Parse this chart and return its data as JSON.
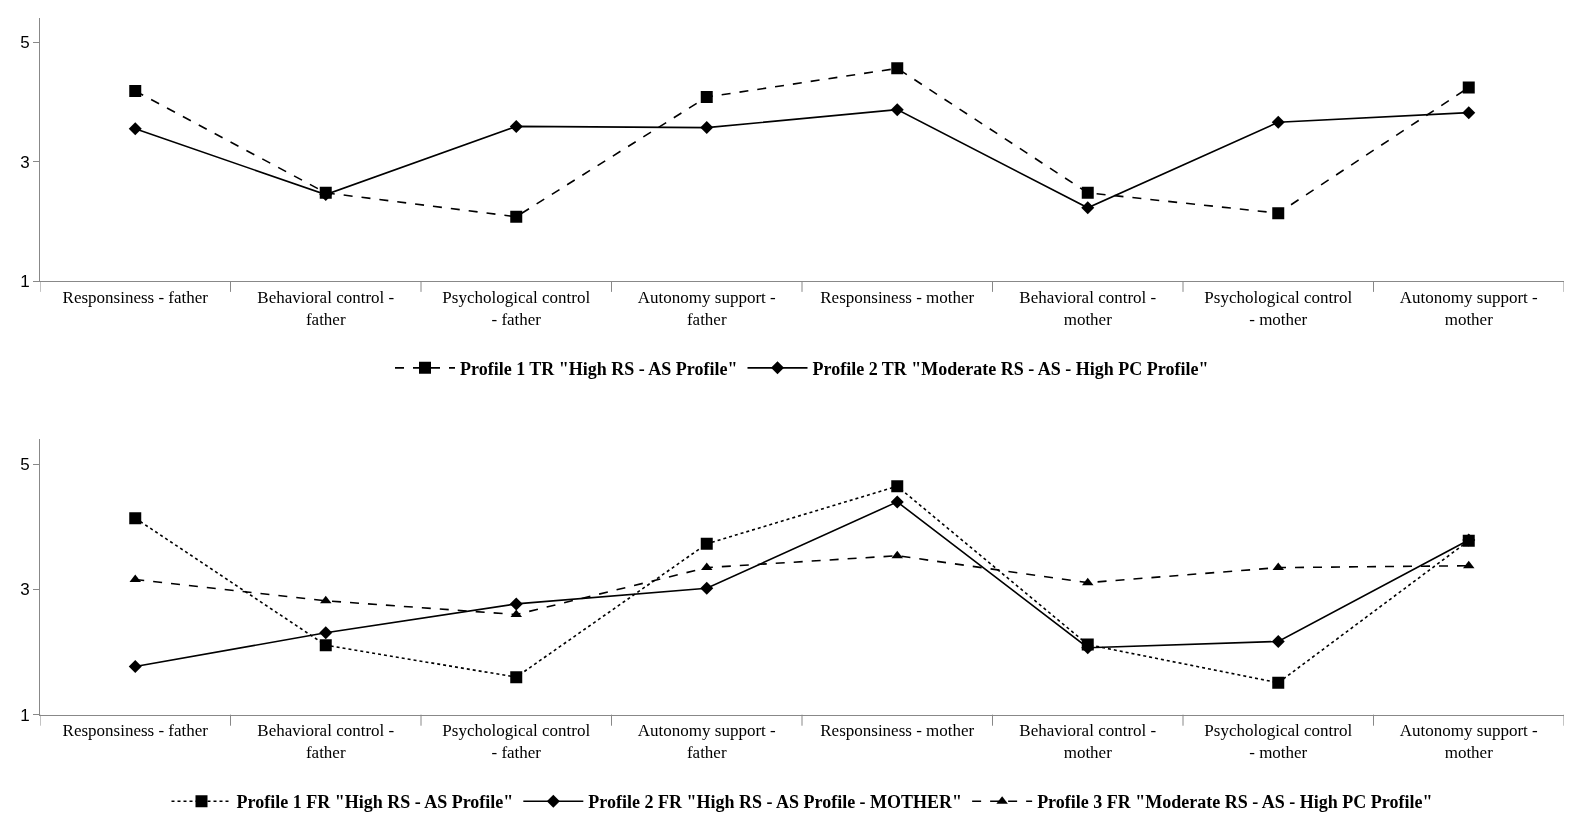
{
  "chart_data": [
    {
      "type": "line",
      "categories": [
        "Responsiness - father",
        "Behavioral control - father",
        "Psychological control - father",
        "Autonomy support - father",
        "Responsiness - mother",
        "Behavioral control - mother",
        "Psychological control - mother",
        "Autonomy support - mother"
      ],
      "series": [
        {
          "name": "Profile 1 TR \"High RS - AS Profile\"",
          "color": "#000000",
          "marker": "square",
          "line_style": "dashed",
          "values": [
            4.18,
            2.48,
            2.08,
            4.08,
            4.56,
            2.48,
            2.14,
            4.24
          ]
        },
        {
          "name": "Profile 2 TR \"Moderate RS - AS - High PC Profile\"",
          "color": "#000000",
          "marker": "diamond",
          "line_style": "solid",
          "values": [
            3.55,
            2.45,
            3.59,
            3.57,
            3.87,
            2.23,
            3.66,
            3.82
          ]
        }
      ],
      "ylim": [
        1,
        5.4
      ],
      "yticks": [
        1,
        3,
        5
      ],
      "legend": "bottom"
    },
    {
      "type": "line",
      "categories": [
        "Responsiness - father",
        "Behavioral control - father",
        "Psychological control - father",
        "Autonomy support - father",
        "Responsiness - mother",
        "Behavioral control - mother",
        "Psychological control - mother",
        "Autonomy support - mother"
      ],
      "series": [
        {
          "name": "Profile 1 FR \"High RS - AS Profile\"",
          "color": "#000000",
          "marker": "square",
          "line_style": "dotted",
          "values": [
            4.14,
            2.11,
            1.6,
            3.73,
            4.65,
            2.12,
            1.51,
            3.78
          ]
        },
        {
          "name": "Profile 2 FR \"High RS - AS Profile - MOTHER\"",
          "color": "#000000",
          "marker": "diamond",
          "line_style": "solid",
          "values": [
            1.77,
            2.31,
            2.77,
            3.02,
            4.4,
            2.07,
            2.17,
            3.79
          ]
        },
        {
          "name": "Profile 3 FR \"Moderate RS - AS - High PC Profile\"",
          "color": "#000000",
          "marker": "triangle",
          "line_style": "dashed",
          "values": [
            3.16,
            2.82,
            2.6,
            3.35,
            3.54,
            3.11,
            3.35,
            3.38
          ]
        }
      ],
      "ylim": [
        1,
        5.4
      ],
      "yticks": [
        1,
        3,
        5
      ],
      "legend": "bottom"
    }
  ]
}
